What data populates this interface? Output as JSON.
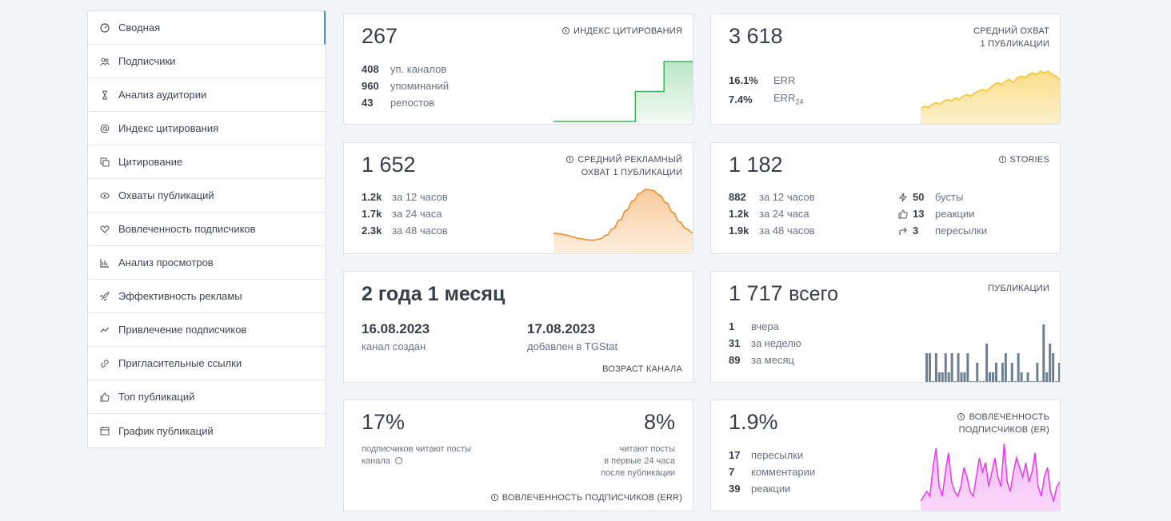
{
  "sidebar": {
    "items": [
      {
        "label": "Сводная",
        "icon": "gauge-icon"
      },
      {
        "label": "Подписчики",
        "icon": "users-icon"
      },
      {
        "label": "Анализ аудитории",
        "icon": "hourglass-icon"
      },
      {
        "label": "Индекс цитирования",
        "icon": "at-icon"
      },
      {
        "label": "Цитирование",
        "icon": "copy-icon"
      },
      {
        "label": "Охваты публикаций",
        "icon": "eye-icon"
      },
      {
        "label": "Вовлеченность подписчиков",
        "icon": "heart-icon"
      },
      {
        "label": "Анализ просмотров",
        "icon": "bar-chart-icon"
      },
      {
        "label": "Эффективность рекламы",
        "icon": "rocket-icon"
      },
      {
        "label": "Привлечение подписчиков",
        "icon": "trend-icon"
      },
      {
        "label": "Пригласительные ссылки",
        "icon": "link-icon"
      },
      {
        "label": "Топ публикаций",
        "icon": "thumbs-up-icon"
      },
      {
        "label": "График публикаций",
        "icon": "calendar-icon"
      }
    ]
  },
  "citation": {
    "value": "267",
    "title": "ИНДЕКС ЦИТИРОВАНИЯ",
    "rows": [
      {
        "num": "408",
        "label": "уп. каналов"
      },
      {
        "num": "960",
        "label": "упоминаний"
      },
      {
        "num": "43",
        "label": "репостов"
      }
    ],
    "color": "#3cb55a"
  },
  "reach": {
    "value": "3 618",
    "title1": "СРЕДНИЙ ОХВАТ",
    "title2": "1 ПУБЛИКАЦИИ",
    "err": "16.1%",
    "err_label": "ERR",
    "err24": "7.4%",
    "err24_label": "ERR",
    "err24_sub": "24",
    "color": "#f6c22e"
  },
  "adreach": {
    "value": "1 652",
    "title1": "СРЕДНИЙ РЕКЛАМНЫЙ",
    "title2": "ОХВАТ 1 ПУБЛИКАЦИИ",
    "rows": [
      {
        "num": "1.2k",
        "label": "за 12 часов"
      },
      {
        "num": "1.7k",
        "label": "за 24 часа"
      },
      {
        "num": "2.3k",
        "label": "за 48 часов"
      }
    ],
    "color": "#f08a24"
  },
  "stories": {
    "value": "1 182",
    "title": "STORIES",
    "rows": [
      {
        "num": "882",
        "label": "за 12 часов"
      },
      {
        "num": "1.2k",
        "label": "за 24 часа"
      },
      {
        "num": "1.9k",
        "label": "за 48 часов"
      }
    ],
    "extras": [
      {
        "num": "50",
        "label": "бусты",
        "icon": "lightning-icon"
      },
      {
        "num": "13",
        "label": "реакции",
        "icon": "thumbs-up-icon"
      },
      {
        "num": "3",
        "label": "пересылки",
        "icon": "forward-icon"
      }
    ]
  },
  "age": {
    "value": "2 года 1 месяц",
    "created_date": "16.08.2023",
    "created_label": "канал создан",
    "added_date": "17.08.2023",
    "added_label": "добавлен в TGStat",
    "title": "ВОЗРАСТ КАНАЛА"
  },
  "posts": {
    "value": "1 717",
    "value_sub": "всего",
    "title": "ПУБЛИКАЦИИ",
    "rows": [
      {
        "num": "1",
        "label": "вчера"
      },
      {
        "num": "31",
        "label": "за неделю"
      },
      {
        "num": "89",
        "label": "за месяц"
      }
    ],
    "color": "#6e7f8f"
  },
  "engagement_err": {
    "left_value": "17%",
    "left_label1": "подписчиков читают посты",
    "left_label2": "канала",
    "right_value": "8%",
    "right_label1": "читают посты",
    "right_label2": "в первые 24 часа",
    "right_label3": "после публикации",
    "title": "ВОВЛЕЧЕННОСТЬ ПОДПИСЧИКОВ (ERR)"
  },
  "engagement_er": {
    "value": "1.9%",
    "title1": "ВОВЛЕЧЕННОСТЬ",
    "title2": "ПОДПИСЧИКОВ (ER)",
    "rows": [
      {
        "num": "17",
        "label": "пересылки"
      },
      {
        "num": "7",
        "label": "комментарии"
      },
      {
        "num": "39",
        "label": "реакции"
      }
    ],
    "color": "#e43ae8"
  },
  "chart_data": [
    {
      "type": "line",
      "name": "citation-step",
      "values": [
        0,
        0,
        0,
        0,
        0,
        0,
        0,
        0,
        0,
        0,
        0,
        0,
        0,
        0,
        0,
        0,
        0,
        0,
        0,
        0,
        1,
        1,
        1,
        1,
        1,
        1,
        1,
        2,
        2,
        2,
        2,
        2,
        2,
        2,
        2
      ]
    },
    {
      "type": "area",
      "name": "reach-trend",
      "values": [
        2,
        4,
        3,
        5,
        6,
        5,
        7,
        8,
        7,
        9,
        8,
        10,
        11,
        10,
        12,
        13,
        14,
        13,
        15,
        17,
        18,
        17,
        19,
        20,
        18,
        21,
        22,
        21,
        23,
        24,
        23,
        25,
        24,
        25,
        23,
        22,
        20
      ]
    },
    {
      "type": "area",
      "name": "adreach-bell",
      "values": [
        4,
        3.8,
        3.5,
        3,
        2.6,
        2.3,
        2.2,
        2.5,
        3.5,
        5.2,
        7.5,
        10,
        12.5,
        14.5,
        15.5,
        15.2,
        14,
        12,
        9.5,
        7,
        5.2,
        4.2
      ]
    },
    {
      "type": "bar",
      "name": "posts-bars",
      "values": [
        3,
        3,
        0,
        3,
        1,
        1,
        3,
        1,
        3,
        0,
        3,
        1,
        1,
        3,
        0,
        0,
        2,
        0,
        0,
        4,
        1,
        1,
        2,
        0,
        2,
        3,
        0,
        2,
        0,
        3,
        1,
        0,
        1,
        0,
        0,
        2,
        0,
        6,
        1,
        4,
        3,
        0,
        2
      ]
    },
    {
      "type": "area",
      "name": "er-spiky",
      "values": [
        3,
        4,
        5,
        4,
        10,
        14,
        6,
        4,
        9,
        13,
        7,
        5,
        4,
        6,
        10,
        8,
        5,
        4,
        8,
        12,
        9,
        11,
        6,
        9,
        12,
        8,
        6,
        15,
        7,
        5,
        9,
        12,
        10,
        8,
        11,
        7,
        9,
        13,
        6,
        4,
        8,
        10,
        5,
        3,
        6,
        7
      ]
    }
  ]
}
